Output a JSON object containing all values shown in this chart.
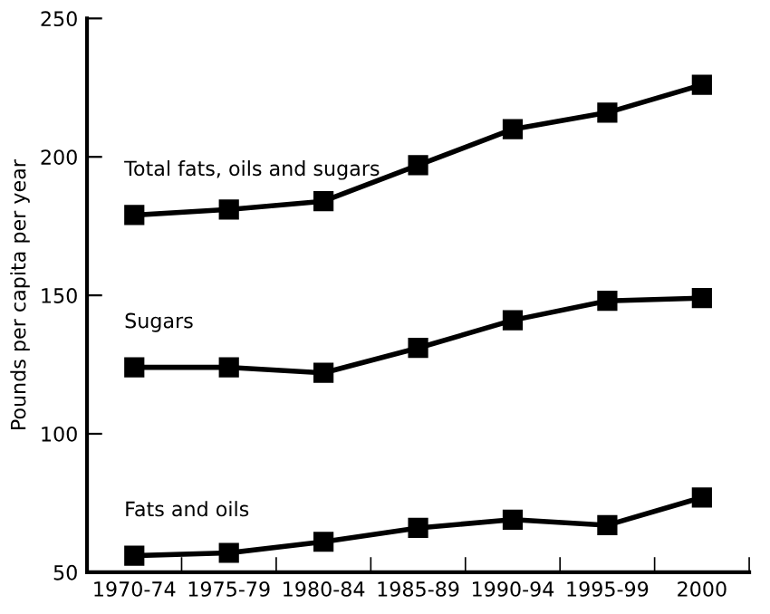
{
  "chart_data": {
    "type": "line",
    "ylabel": "Pounds per capita per year",
    "categories": [
      "1970-74",
      "1975-79",
      "1980-84",
      "1985-89",
      "1990-94",
      "1995-99",
      "2000"
    ],
    "series": [
      {
        "name": "Total fats, oils and sugars",
        "color": "#000000",
        "values": [
          179,
          181,
          184,
          197,
          210,
          216,
          226
        ]
      },
      {
        "name": "Sugars",
        "color": "#000000",
        "values": [
          124,
          124,
          122,
          131,
          141,
          148,
          149
        ]
      },
      {
        "name": "Fats and oils",
        "color": "#000000",
        "values": [
          56,
          57,
          61,
          66,
          69,
          67,
          77
        ]
      }
    ],
    "ylim": [
      50,
      250
    ],
    "yticks": [
      50,
      100,
      150,
      200,
      250
    ],
    "marker": "square",
    "line_style": "solid",
    "grid": false,
    "legend": false
  }
}
